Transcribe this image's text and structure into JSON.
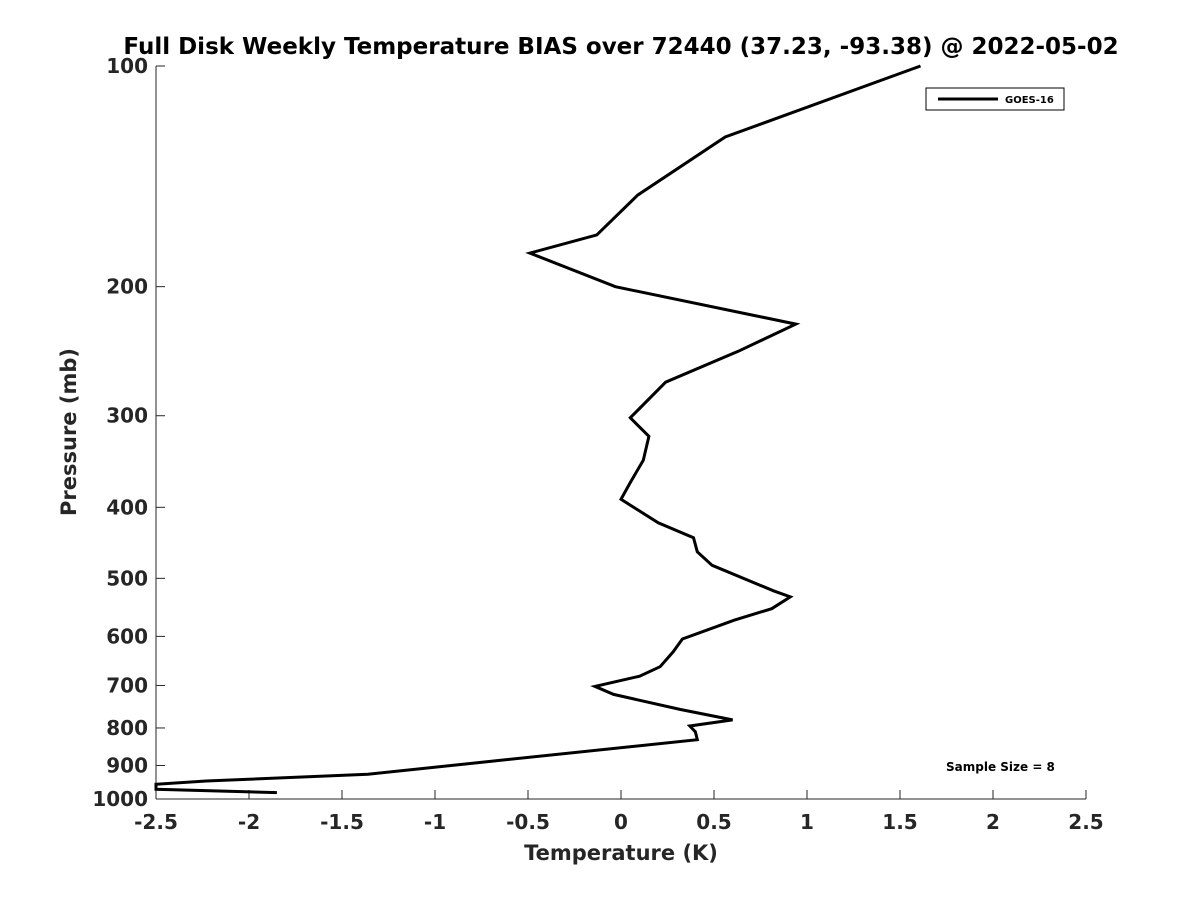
{
  "chart_data": {
    "type": "line",
    "title": "Full Disk Weekly Temperature BIAS over 72440 (37.23, -93.38) @ 2022-05-02",
    "xlabel": "Temperature (K)",
    "ylabel": "Pressure (mb)",
    "xlim": [
      -2.5,
      2.5
    ],
    "ylim": [
      100,
      1000
    ],
    "y_scale": "log",
    "y_reversed": true,
    "grid": false,
    "xticks": [
      -2.5,
      -2,
      -1.5,
      -1,
      -0.5,
      0,
      0.5,
      1,
      1.5,
      2,
      2.5
    ],
    "xtick_labels": [
      "-2.5",
      "-2",
      "-1.5",
      "-1",
      "-0.5",
      "0",
      "0.5",
      "1",
      "1.5",
      "2",
      "2.5"
    ],
    "yticks": [
      100,
      200,
      300,
      400,
      500,
      600,
      700,
      800,
      900,
      1000
    ],
    "ytick_labels": [
      "100",
      "200",
      "300",
      "400",
      "500",
      "600",
      "700",
      "800",
      "900",
      "1000"
    ],
    "legend_position": "top-right",
    "annotation": "Sample Size = 8",
    "series": [
      {
        "name": "GOES-16",
        "color": "#000000",
        "x": [
          1.61,
          0.56,
          0.09,
          -0.13,
          -0.49,
          -0.03,
          0.94,
          0.63,
          0.24,
          0.05,
          0.15,
          0.12,
          0.05,
          0.0,
          0.2,
          0.39,
          0.41,
          0.49,
          0.82,
          0.91,
          0.81,
          0.61,
          0.33,
          0.28,
          0.21,
          0.1,
          -0.14,
          -0.04,
          0.32,
          0.6,
          0.37,
          0.4,
          0.41,
          -1.36,
          -2.23,
          -2.5,
          -2.5,
          -1.85
        ],
        "y": [
          100,
          125,
          150,
          170,
          180,
          200,
          225,
          245,
          270,
          302,
          320,
          345,
          370,
          390,
          420,
          440,
          460,
          480,
          520,
          530,
          550,
          570,
          605,
          630,
          660,
          680,
          702,
          720,
          755,
          780,
          795,
          810,
          830,
          925,
          945,
          955,
          970,
          980
        ]
      }
    ]
  }
}
